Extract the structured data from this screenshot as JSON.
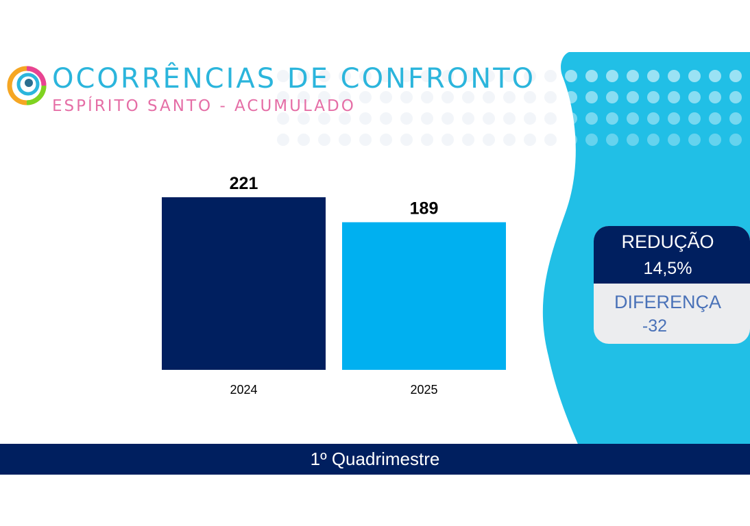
{
  "header": {
    "title": "OCORRÊNCIAS DE CONFRONTO",
    "subtitle": "ESPÍRITO SANTO - ACUMULADO"
  },
  "chart_data": {
    "type": "bar",
    "categories": [
      "2024",
      "2025"
    ],
    "values": [
      221,
      189
    ],
    "data_labels": [
      "221",
      "189"
    ],
    "colors": [
      "#001f5f",
      "#00b0f0"
    ],
    "ylim": [
      0,
      221
    ],
    "grid": false
  },
  "info_card": {
    "reduction_label": "REDUÇÃO",
    "reduction_value": "14,5%",
    "difference_label": "DIFERENÇA",
    "difference_value": "-32"
  },
  "footer": {
    "label": "1º Quadrimestre"
  },
  "colors": {
    "navy": "#001f5f",
    "cyan": "#00b0f0",
    "wave": "#21bfe6",
    "title": "#2bb5dc",
    "subtitle": "#e56ea6"
  }
}
